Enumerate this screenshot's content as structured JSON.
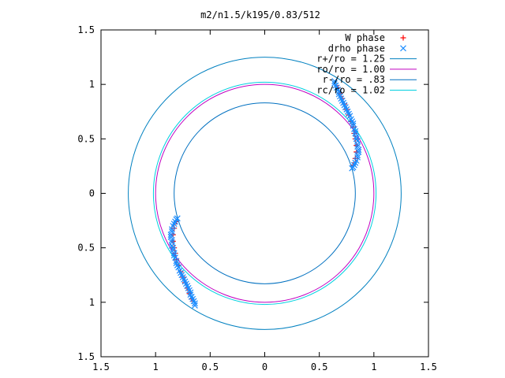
{
  "chart_data": {
    "type": "scatter",
    "title": "m2/n1.5/k195/0.83/512",
    "xlabel": "",
    "ylabel": "",
    "xlim": [
      -1.5,
      1.5
    ],
    "ylim": [
      -1.5,
      1.5
    ],
    "grid": false,
    "legend_position": "top-right",
    "x_ticks": [
      {
        "v": -1.5,
        "label": "1.5"
      },
      {
        "v": -1.0,
        "label": "1"
      },
      {
        "v": -0.5,
        "label": "0.5"
      },
      {
        "v": 0,
        "label": "0"
      },
      {
        "v": 0.5,
        "label": "0.5"
      },
      {
        "v": 1.0,
        "label": "1"
      },
      {
        "v": 1.5,
        "label": "1.5"
      }
    ],
    "y_ticks": [
      {
        "v": 1.5,
        "label": "1.5"
      },
      {
        "v": 1.0,
        "label": "1"
      },
      {
        "v": 0.5,
        "label": "0.5"
      },
      {
        "v": 0,
        "label": "0"
      },
      {
        "v": -0.5,
        "label": "0.5"
      },
      {
        "v": -1.0,
        "label": "1"
      },
      {
        "v": -1.5,
        "label": "1.5"
      }
    ],
    "circles": [
      {
        "name": "r+/ro = 1.25",
        "r": 1.25,
        "color": "#0080c0"
      },
      {
        "name": "ro/ro = 1.00",
        "r": 1.0,
        "color": "#c000c0"
      },
      {
        "name": "r-/ro = .83",
        "r": 0.83,
        "color": "#0070c0"
      },
      {
        "name": "rc/ro = 1.02",
        "r": 1.02,
        "color": "#00d0e0"
      }
    ],
    "series": [
      {
        "name": "W phase",
        "marker": "plus",
        "color": "#ff0000",
        "points": [
          [
            0.67,
            0.97
          ],
          [
            0.69,
            0.92
          ],
          [
            0.71,
            0.87
          ],
          [
            0.73,
            0.82
          ],
          [
            0.75,
            0.77
          ],
          [
            0.77,
            0.72
          ],
          [
            0.79,
            0.66
          ],
          [
            0.81,
            0.61
          ],
          [
            0.82,
            0.55
          ],
          [
            0.83,
            0.5
          ],
          [
            0.84,
            0.44
          ],
          [
            0.84,
            0.38
          ],
          [
            0.83,
            0.32
          ],
          [
            0.81,
            0.26
          ],
          [
            -0.67,
            -0.97
          ],
          [
            -0.69,
            -0.92
          ],
          [
            -0.71,
            -0.87
          ],
          [
            -0.73,
            -0.82
          ],
          [
            -0.75,
            -0.77
          ],
          [
            -0.77,
            -0.72
          ],
          [
            -0.79,
            -0.66
          ],
          [
            -0.81,
            -0.61
          ],
          [
            -0.82,
            -0.55
          ],
          [
            -0.83,
            -0.5
          ],
          [
            -0.84,
            -0.44
          ],
          [
            -0.84,
            -0.38
          ],
          [
            -0.83,
            -0.32
          ],
          [
            -0.81,
            -0.26
          ]
        ]
      },
      {
        "name": "drho phase",
        "marker": "cross",
        "color": "#1a8cff",
        "points": [
          [
            0.64,
            1.03
          ],
          [
            0.64,
            1.01
          ],
          [
            0.65,
            0.99
          ],
          [
            0.66,
            0.97
          ],
          [
            0.67,
            0.95
          ],
          [
            0.68,
            0.93
          ],
          [
            0.68,
            0.91
          ],
          [
            0.69,
            0.89
          ],
          [
            0.7,
            0.87
          ],
          [
            0.71,
            0.85
          ],
          [
            0.72,
            0.83
          ],
          [
            0.73,
            0.81
          ],
          [
            0.74,
            0.79
          ],
          [
            0.75,
            0.77
          ],
          [
            0.76,
            0.75
          ],
          [
            0.77,
            0.73
          ],
          [
            0.78,
            0.71
          ],
          [
            0.79,
            0.68
          ],
          [
            0.8,
            0.66
          ],
          [
            0.81,
            0.64
          ],
          [
            0.81,
            0.62
          ],
          [
            0.82,
            0.59
          ],
          [
            0.83,
            0.57
          ],
          [
            0.83,
            0.55
          ],
          [
            0.84,
            0.52
          ],
          [
            0.84,
            0.5
          ],
          [
            0.85,
            0.48
          ],
          [
            0.85,
            0.45
          ],
          [
            0.85,
            0.43
          ],
          [
            0.86,
            0.4
          ],
          [
            0.86,
            0.38
          ],
          [
            0.85,
            0.35
          ],
          [
            0.85,
            0.33
          ],
          [
            0.84,
            0.3
          ],
          [
            0.83,
            0.28
          ],
          [
            0.82,
            0.26
          ],
          [
            0.81,
            0.24
          ],
          [
            0.8,
            0.23
          ],
          [
            -0.64,
            -1.03
          ],
          [
            -0.64,
            -1.01
          ],
          [
            -0.65,
            -0.99
          ],
          [
            -0.66,
            -0.97
          ],
          [
            -0.67,
            -0.95
          ],
          [
            -0.68,
            -0.93
          ],
          [
            -0.68,
            -0.91
          ],
          [
            -0.69,
            -0.89
          ],
          [
            -0.7,
            -0.87
          ],
          [
            -0.71,
            -0.85
          ],
          [
            -0.72,
            -0.83
          ],
          [
            -0.73,
            -0.81
          ],
          [
            -0.74,
            -0.79
          ],
          [
            -0.75,
            -0.77
          ],
          [
            -0.76,
            -0.75
          ],
          [
            -0.77,
            -0.73
          ],
          [
            -0.78,
            -0.71
          ],
          [
            -0.79,
            -0.68
          ],
          [
            -0.8,
            -0.66
          ],
          [
            -0.81,
            -0.64
          ],
          [
            -0.81,
            -0.62
          ],
          [
            -0.82,
            -0.59
          ],
          [
            -0.83,
            -0.57
          ],
          [
            -0.83,
            -0.55
          ],
          [
            -0.84,
            -0.52
          ],
          [
            -0.84,
            -0.5
          ],
          [
            -0.85,
            -0.48
          ],
          [
            -0.85,
            -0.45
          ],
          [
            -0.85,
            -0.43
          ],
          [
            -0.86,
            -0.4
          ],
          [
            -0.86,
            -0.38
          ],
          [
            -0.85,
            -0.35
          ],
          [
            -0.85,
            -0.33
          ],
          [
            -0.84,
            -0.3
          ],
          [
            -0.83,
            -0.28
          ],
          [
            -0.82,
            -0.26
          ],
          [
            -0.81,
            -0.24
          ],
          [
            -0.8,
            -0.23
          ]
        ]
      }
    ]
  }
}
